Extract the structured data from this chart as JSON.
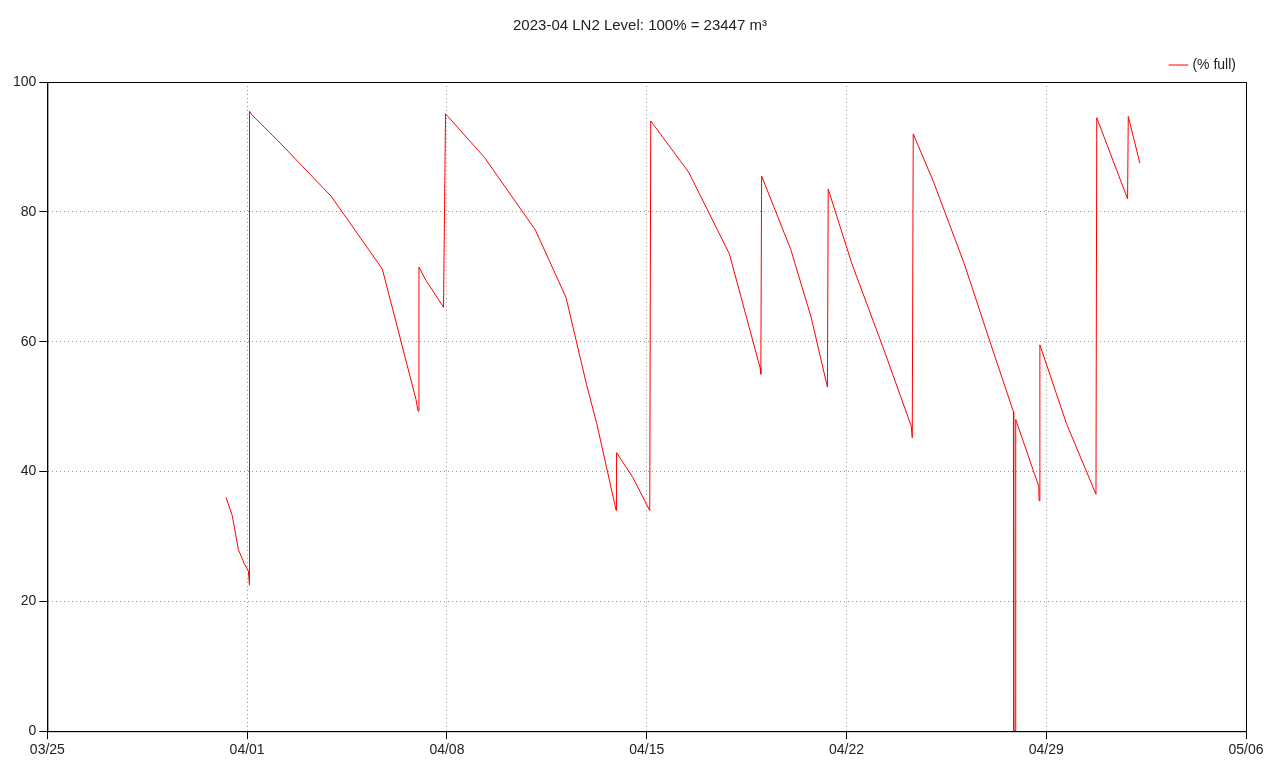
{
  "chart_data": {
    "type": "line",
    "title": "2023-04 LN2 Level: 100% = 23447 m³",
    "series": [
      {
        "name": "(% full)",
        "color": "#ff0000",
        "x": [
          "2023-03-31T06:15",
          "2023-03-31T11:30",
          "2023-03-31T16:35",
          "2023-03-31T21:40",
          "2023-04-01T01:00",
          "2023-04-01T02:00",
          "2023-04-01T02:00",
          "2023-04-01T03:45",
          "2023-04-02T03:45",
          "2023-04-03T22:40",
          "2023-04-05T17:40",
          "2023-04-06T22:00",
          "2023-04-06T23:45",
          "2023-04-07T00:30",
          "2023-04-07T06:30",
          "2023-04-07T21:10",
          "2023-04-07T22:50",
          "2023-04-09T07:30",
          "2023-04-11T02:25",
          "2023-04-12T04:10",
          "2023-04-12T21:25",
          "2023-04-13T06:00",
          "2023-04-13T22:20",
          "2023-04-13T22:40",
          "2023-04-14T12:00",
          "2023-04-15T02:35",
          "2023-04-15T03:25",
          "2023-04-16T11:20",
          "2023-04-17T21:35",
          "2023-04-18T23:20",
          "2023-04-19T00:00",
          "2023-04-19T00:40",
          "2023-04-20T01:10",
          "2023-04-20T18:15",
          "2023-04-21T08:00",
          "2023-04-21T08:40",
          "2023-04-22T04:35",
          "2023-04-23T06:25",
          "2023-04-24T06:30",
          "2023-04-24T07:20",
          "2023-04-24T08:10",
          "2023-04-25T01:15",
          "2023-04-26T03:05",
          "2023-04-27T00:30",
          "2023-04-27T20:25",
          "2023-04-27T20:40",
          "2023-04-27T22:00",
          "2023-04-27T22:20",
          "2023-04-28T17:45",
          "2023-04-28T18:00",
          "2023-04-28T18:40",
          "2023-04-29T17:00",
          "2023-04-30T17:50",
          "2023-04-30T18:30",
          "2023-05-01T20:25",
          "2023-05-01T21:00",
          "2023-05-02T06:45"
        ],
        "values": [
          36,
          33.2,
          28,
          25.8,
          24.7,
          22.5,
          95.5,
          95,
          90.6,
          82.4,
          71.2,
          51.1,
          49.3,
          71.5,
          69.4,
          65.3,
          95.1,
          88.4,
          77.2,
          66.8,
          53.4,
          47.4,
          34,
          42.9,
          39.2,
          34,
          94,
          86.1,
          73.5,
          56,
          55,
          85.5,
          74.2,
          63.8,
          53,
          83.5,
          72,
          59.3,
          47,
          45.2,
          92,
          84.6,
          72,
          60.1,
          49.2,
          0,
          0,
          48,
          37.7,
          35.5,
          59.5,
          47.4,
          36.5,
          94.5,
          82,
          94.7,
          87.5
        ]
      }
    ],
    "xlim": [
      "2023-03-25",
      "2023-05-06"
    ],
    "xticks": [
      {
        "value": "2023-03-25",
        "label": "03/25"
      },
      {
        "value": "2023-04-01",
        "label": "04/01"
      },
      {
        "value": "2023-04-08",
        "label": "04/08"
      },
      {
        "value": "2023-04-15",
        "label": "04/15"
      },
      {
        "value": "2023-04-22",
        "label": "04/22"
      },
      {
        "value": "2023-04-29",
        "label": "04/29"
      },
      {
        "value": "2023-05-06",
        "label": "05/06"
      }
    ],
    "ylim": [
      0,
      100
    ],
    "yticks": [
      0,
      20,
      40,
      60,
      80,
      100
    ],
    "grid": true,
    "legend": "top right",
    "marker": "none",
    "line_style": "solid"
  }
}
